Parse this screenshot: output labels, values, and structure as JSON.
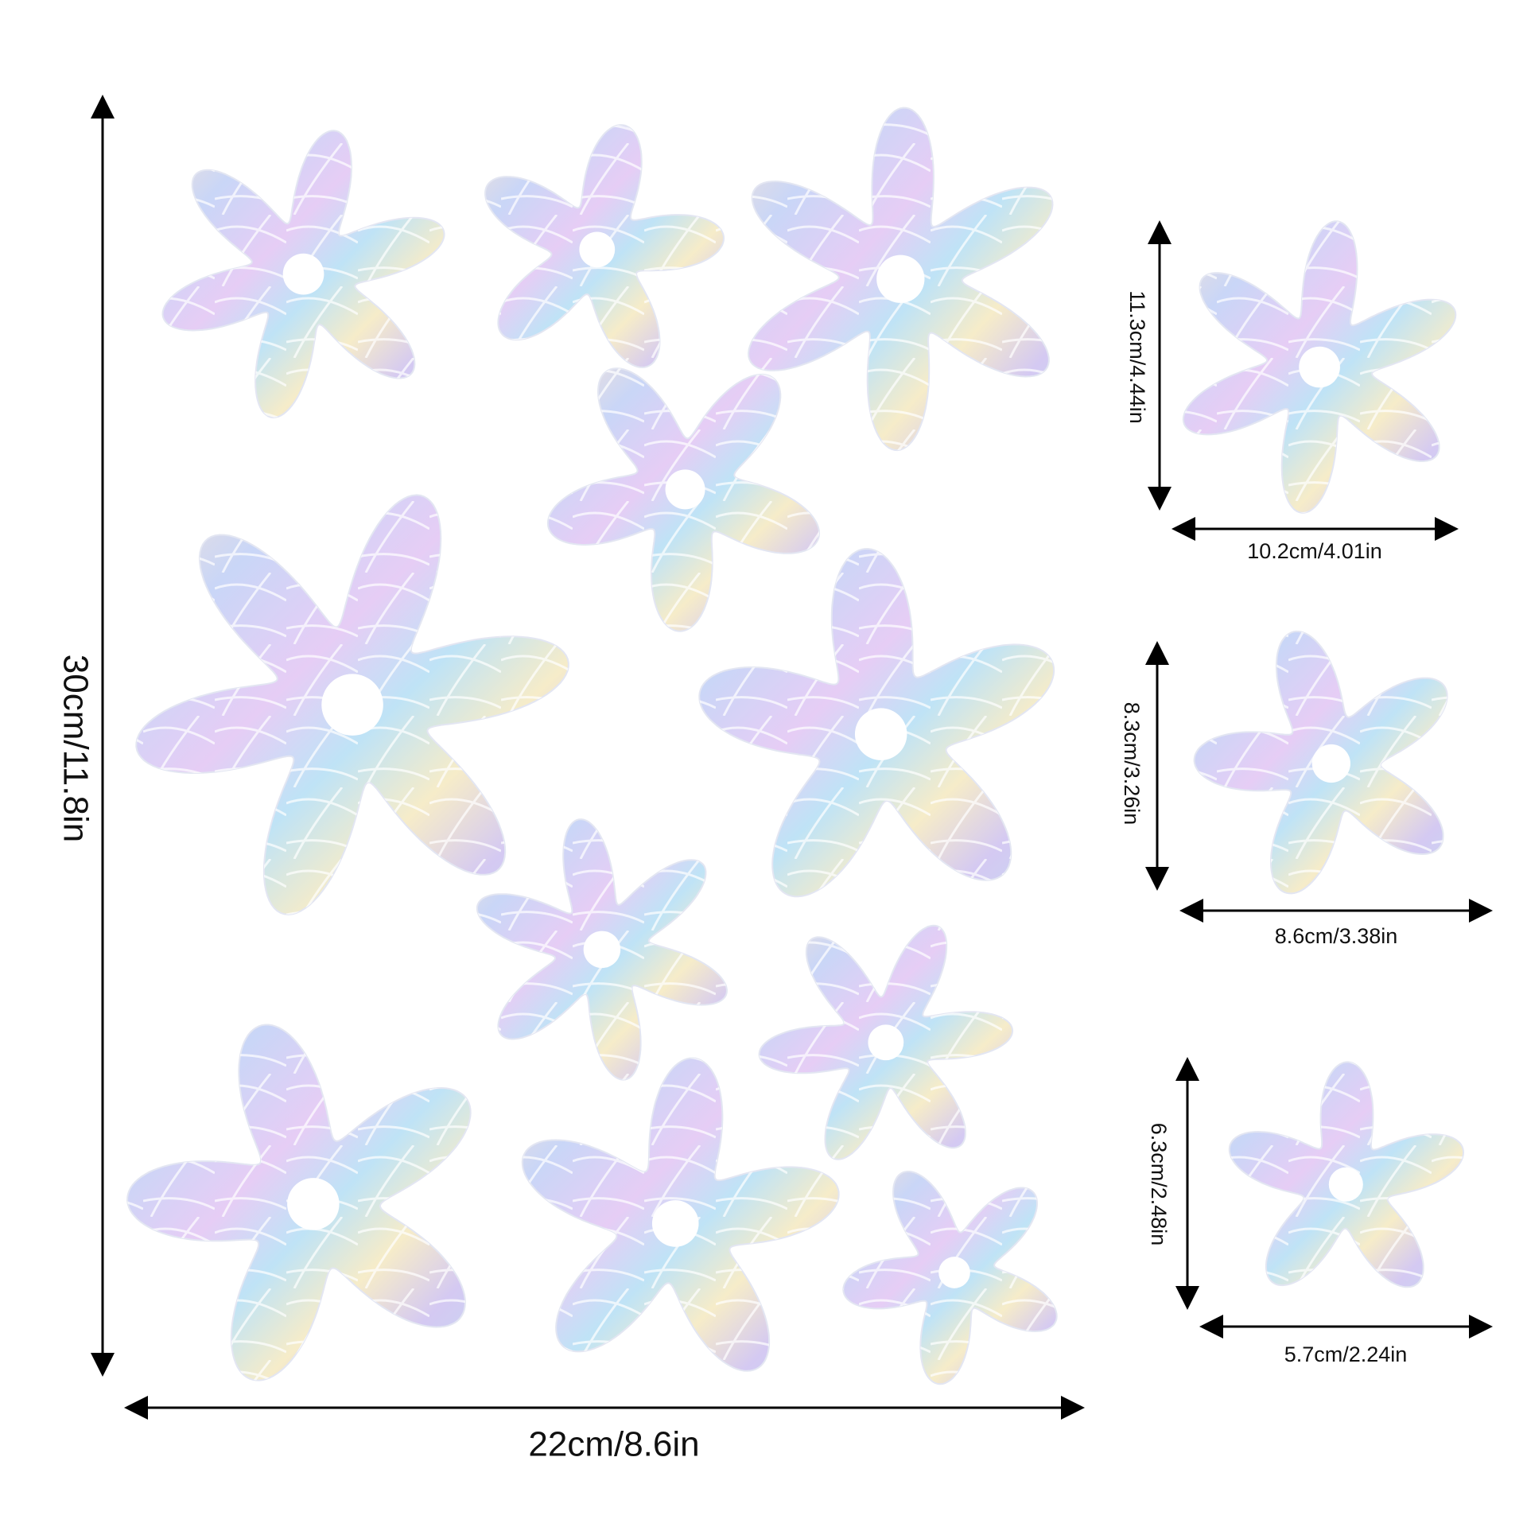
{
  "dimensions": {
    "height": "30cm/11.8in",
    "width": "22cm/8.6in"
  },
  "sizes": [
    {
      "height": "11.3cm/4.44in",
      "width": "10.2cm/4.01in"
    },
    {
      "height": "8.3cm/3.26in",
      "width": "8.6cm/3.38in"
    },
    {
      "height": "6.3cm/2.48in",
      "width": "5.7cm/2.24in"
    }
  ]
}
